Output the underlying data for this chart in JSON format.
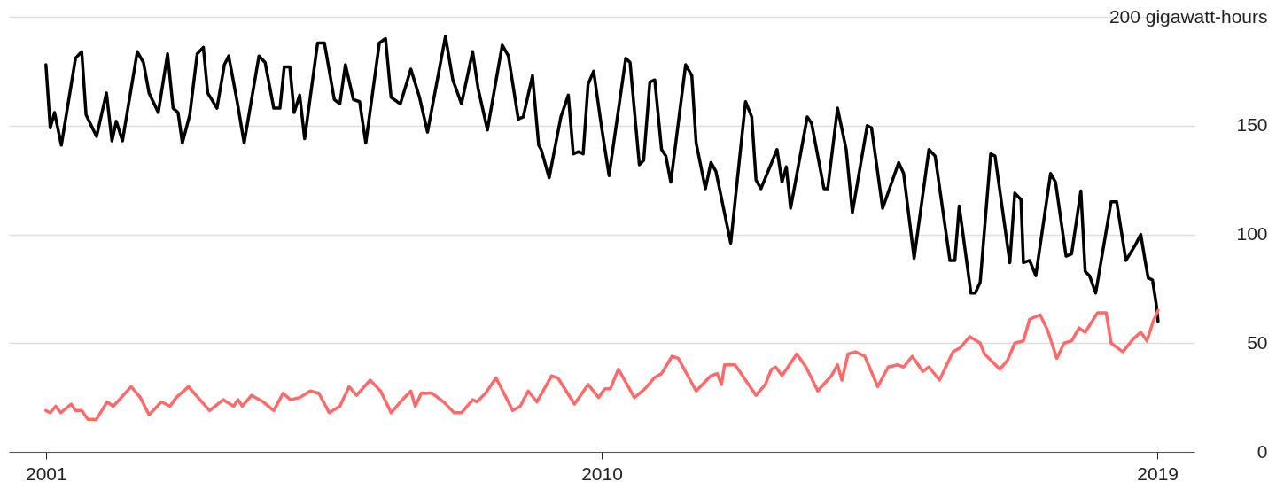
{
  "chart_data": {
    "type": "line",
    "series": [
      {
        "color": "#000000",
        "x": [
          2001.0,
          2001.07,
          2001.14,
          2001.25,
          2001.48,
          2001.58,
          2001.65,
          2001.82,
          2001.98,
          2002.07,
          2002.14,
          2002.24,
          2002.48,
          2002.58,
          2002.67,
          2002.82,
          2002.97,
          2003.06,
          2003.14,
          2003.21,
          2003.33,
          2003.45,
          2003.55,
          2003.62,
          2003.77,
          2003.89,
          2003.96,
          2004.11,
          2004.21,
          2004.45,
          2004.55,
          2004.69,
          2004.79,
          2004.86,
          2004.95,
          2005.02,
          2005.11,
          2005.19,
          2005.4,
          2005.51,
          2005.67,
          2005.76,
          2005.85,
          2005.98,
          2006.08,
          2006.18,
          2006.4,
          2006.5,
          2006.59,
          2006.74,
          2006.91,
          2007.05,
          2007.18,
          2007.47,
          2007.59,
          2007.73,
          2007.91,
          2008.0,
          2008.15,
          2008.39,
          2008.49,
          2008.65,
          2008.73,
          2008.88,
          2008.98,
          2009.02,
          2009.15,
          2009.34,
          2009.46,
          2009.54,
          2009.63,
          2009.7,
          2009.78,
          2009.87,
          2010.0,
          2010.12,
          2010.39,
          2010.46,
          2010.61,
          2010.68,
          2010.78,
          2010.86,
          2010.97,
          2011.04,
          2011.12,
          2011.36,
          2011.46,
          2011.53,
          2011.68,
          2011.77,
          2011.85,
          2012.09,
          2012.33,
          2012.43,
          2012.5,
          2012.58,
          2012.84,
          2012.92,
          2012.99,
          2013.06,
          2013.33,
          2013.4,
          2013.6,
          2013.66,
          2013.82,
          2013.96,
          2014.06,
          2014.3,
          2014.37,
          2014.55,
          2014.81,
          2014.89,
          2015.06,
          2015.3,
          2015.4,
          2015.64,
          2015.72,
          2015.79,
          2015.98,
          2016.05,
          2016.13,
          2016.3,
          2016.37,
          2016.61,
          2016.69,
          2016.79,
          2016.83,
          2016.93,
          2017.03,
          2017.27,
          2017.35,
          2017.52,
          2017.61,
          2017.76,
          2017.83,
          2017.9,
          2018.0,
          2018.25,
          2018.34,
          2018.49,
          2018.64,
          2018.73,
          2018.8,
          2018.85,
          2018.92,
          2018.98,
          2019.01
        ],
        "values": [
          178,
          149,
          156,
          141,
          181,
          184,
          155,
          145,
          165,
          143,
          152,
          143,
          184,
          179,
          165,
          156,
          183,
          158,
          156,
          142,
          155,
          183,
          186,
          165,
          158,
          178,
          182,
          159,
          142,
          182,
          179,
          158,
          158,
          177,
          177,
          156,
          164,
          144,
          188,
          188,
          162,
          160,
          178,
          162,
          161,
          142,
          188,
          190,
          163,
          160,
          176,
          163,
          147,
          191,
          171,
          160,
          184,
          167,
          148,
          187,
          182,
          153,
          154,
          173,
          141,
          139,
          126,
          154,
          164,
          137,
          138,
          137,
          169,
          175,
          149,
          127,
          181,
          179,
          132,
          134,
          170,
          171,
          139,
          136,
          124,
          178,
          173,
          142,
          121,
          133,
          129,
          96,
          161,
          154,
          125,
          121,
          139,
          124,
          131,
          112,
          154,
          151,
          121,
          121,
          158,
          139,
          110,
          150,
          149,
          112,
          133,
          128,
          89,
          139,
          136,
          88,
          88,
          113,
          73,
          73,
          78,
          137,
          136,
          87,
          119,
          116,
          87,
          88,
          81,
          128,
          124,
          90,
          91,
          120,
          83,
          81,
          73,
          115,
          115,
          88,
          95,
          100,
          88,
          80,
          79,
          68,
          60
        ]
      },
      {
        "color": "#fe6a6a",
        "x": [
          2001.0,
          2001.07,
          2001.16,
          2001.24,
          2001.41,
          2001.48,
          2001.58,
          2001.68,
          2001.82,
          2001.99,
          2002.09,
          2002.38,
          2002.53,
          2002.67,
          2002.87,
          2003.01,
          2003.11,
          2003.31,
          2003.4,
          2003.65,
          2003.87,
          2004.04,
          2004.11,
          2004.18,
          2004.33,
          2004.52,
          2004.69,
          2004.84,
          2004.96,
          2005.11,
          2005.28,
          2005.42,
          2005.59,
          2005.76,
          2005.91,
          2006.03,
          2006.25,
          2006.42,
          2006.59,
          2006.74,
          2006.91,
          2006.98,
          2007.08,
          2007.25,
          2007.44,
          2007.61,
          2007.73,
          2007.91,
          2007.98,
          2008.12,
          2008.29,
          2008.56,
          2008.68,
          2008.81,
          2008.95,
          2009.19,
          2009.29,
          2009.56,
          2009.78,
          2009.95,
          2010.05,
          2010.14,
          2010.27,
          2010.53,
          2010.7,
          2010.85,
          2010.97,
          2011.14,
          2011.24,
          2011.53,
          2011.77,
          2011.87,
          2011.94,
          2011.99,
          2012.16,
          2012.5,
          2012.65,
          2012.75,
          2012.82,
          2012.92,
          2013.16,
          2013.31,
          2013.5,
          2013.72,
          2013.82,
          2013.89,
          2013.99,
          2014.11,
          2014.26,
          2014.47,
          2014.64,
          2014.79,
          2014.89,
          2015.03,
          2015.2,
          2015.3,
          2015.47,
          2015.69,
          2015.81,
          2015.96,
          2016.13,
          2016.2,
          2016.45,
          2016.57,
          2016.69,
          2016.83,
          2016.93,
          2017.1,
          2017.22,
          2017.37,
          2017.49,
          2017.61,
          2017.73,
          2017.83,
          2018.03,
          2018.17,
          2018.25,
          2018.44,
          2018.61,
          2018.73,
          2018.83,
          2018.93,
          2019.01
        ],
        "values": [
          19,
          18,
          21,
          18,
          22,
          19,
          19,
          15,
          15,
          23,
          21,
          30,
          25,
          17,
          23,
          21,
          25,
          30,
          27,
          19,
          24,
          21,
          24,
          21,
          26,
          23,
          19,
          27,
          24,
          25,
          28,
          27,
          18,
          21,
          30,
          26,
          33,
          28,
          18,
          23,
          28,
          21,
          27,
          27,
          23,
          18,
          18,
          24,
          23,
          27,
          34,
          19,
          21,
          28,
          23,
          35,
          34,
          22,
          31,
          25,
          29,
          29,
          38,
          25,
          29,
          34,
          36,
          44,
          43,
          28,
          35,
          36,
          31,
          40,
          40,
          26,
          31,
          38,
          39,
          35,
          45,
          39,
          28,
          35,
          40,
          33,
          45,
          46,
          44,
          30,
          39,
          40,
          39,
          44,
          37,
          39,
          33,
          46,
          48,
          53,
          50,
          45,
          38,
          42,
          50,
          51,
          61,
          63,
          56,
          43,
          50,
          51,
          57,
          55,
          64,
          64,
          50,
          46,
          52,
          55,
          51,
          60,
          65
        ]
      }
    ],
    "xlim": [
      2000.4,
      2019.6
    ],
    "xticks": [
      2001,
      2010,
      2019
    ],
    "ylim": [
      0,
      200
    ],
    "yticks": [
      0,
      50,
      100,
      150,
      {
        "value": 200,
        "label": "200 gigawatt-hours"
      }
    ],
    "grid": "y",
    "line_style": "solid"
  }
}
